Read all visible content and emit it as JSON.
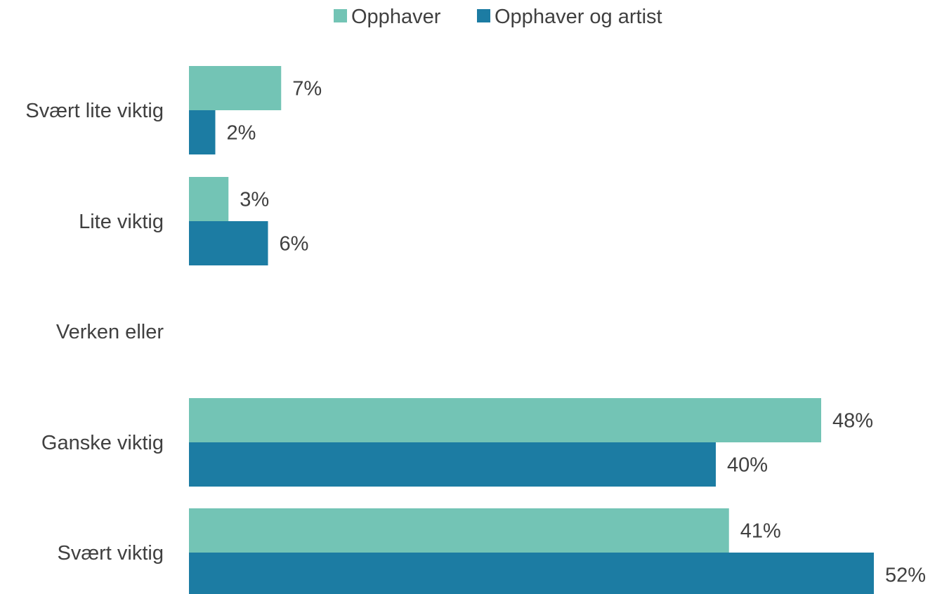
{
  "chart_data": {
    "type": "bar",
    "orientation": "horizontal",
    "categories": [
      "Svært lite viktig",
      "Lite viktig",
      "Verken eller",
      "Ganske viktig",
      "Svært viktig"
    ],
    "series": [
      {
        "name": "Opphaver",
        "color": "#73c4b5",
        "values": [
          7,
          3,
          null,
          48,
          41
        ],
        "labels": [
          "7%",
          "3%",
          "",
          "48%",
          "41%"
        ]
      },
      {
        "name": "Opphaver og artist",
        "color": "#1c7ca3",
        "values": [
          2,
          6,
          null,
          40,
          52
        ],
        "labels": [
          "2%",
          "6%",
          "",
          "40%",
          "52%"
        ]
      }
    ],
    "value_unit": "%",
    "legend_position": "top",
    "grid": false,
    "xlim": [
      0,
      52
    ]
  }
}
